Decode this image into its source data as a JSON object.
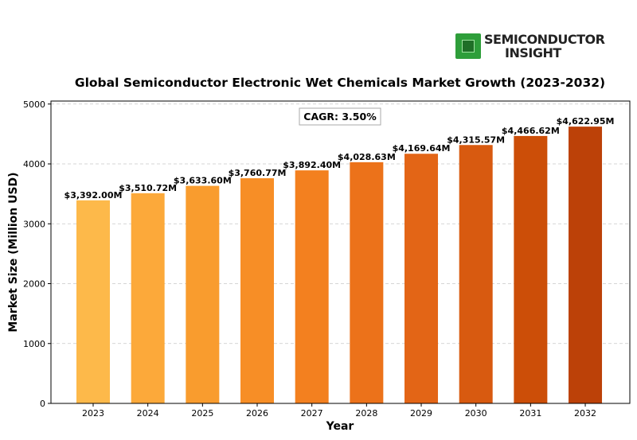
{
  "logo": {
    "line1": "SEMICONDUCTOR",
    "line2": "INSIGHT"
  },
  "chart_data": {
    "type": "bar",
    "title": "Global Semiconductor Electronic Wet Chemicals Market Growth (2023-2032)",
    "xlabel": "Year",
    "ylabel": "Market Size (Million USD)",
    "categories": [
      "2023",
      "2024",
      "2025",
      "2026",
      "2027",
      "2028",
      "2029",
      "2030",
      "2031",
      "2032"
    ],
    "values": [
      3392.0,
      3510.72,
      3633.6,
      3760.77,
      3892.4,
      4028.63,
      4169.64,
      4315.57,
      4466.62,
      4622.95
    ],
    "data_labels": [
      "$3,392.00M",
      "$3,510.72M",
      "$3,633.60M",
      "$3,760.77M",
      "$3,892.40M",
      "$4,028.63M",
      "$4,169.64M",
      "$4,315.57M",
      "$4,466.62M",
      "$4,622.95M"
    ],
    "bar_colors": [
      "#FDB94A",
      "#FCA93A",
      "#F99C2E",
      "#F78E26",
      "#F3801F",
      "#EC721A",
      "#E36516",
      "#D85A10",
      "#CC4E08",
      "#BC4108"
    ],
    "ylim": [
      0,
      5050
    ],
    "yticks": [
      0,
      1000,
      2000,
      3000,
      4000,
      5000
    ],
    "grid": "horizontal-dashed",
    "annotation": "CAGR: 3.50%"
  }
}
